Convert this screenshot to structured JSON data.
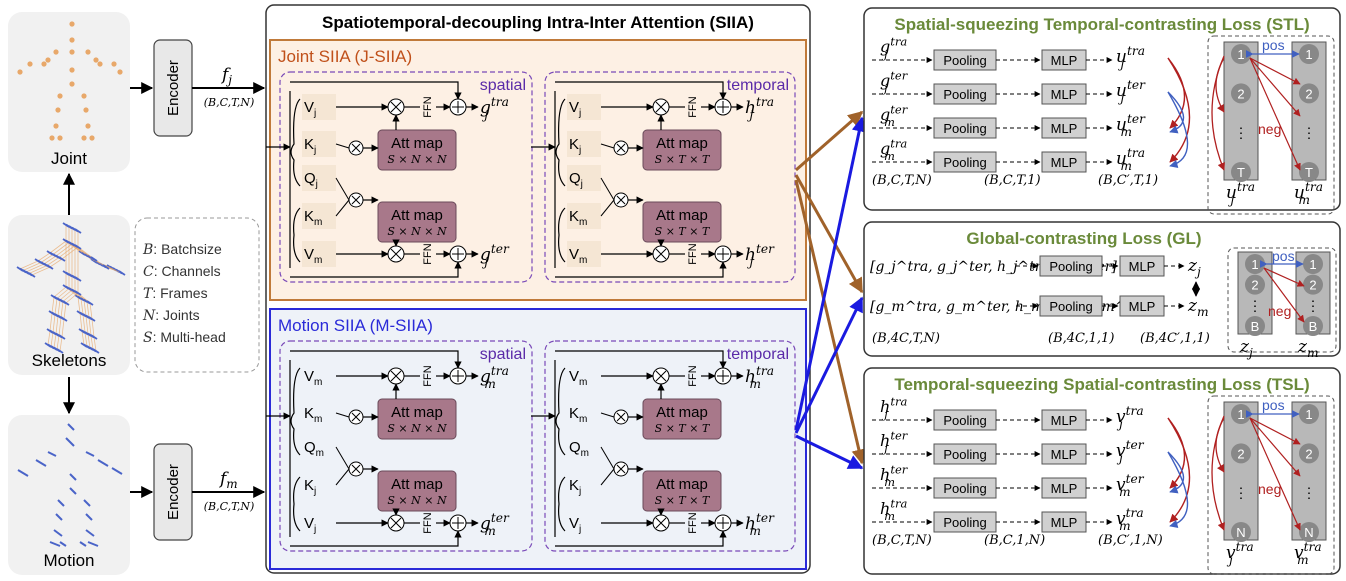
{
  "left": {
    "joint_label": "Joint",
    "skeletons_label": "Skeletons",
    "motion_label": "Motion",
    "encoder_label": "Encoder",
    "fj": "f",
    "fj_sub": "j",
    "fm": "f",
    "fm_sub": "m",
    "shape": "(B,C,T,N)",
    "legend": [
      {
        "sym": "B",
        "desc": ": Batchsize"
      },
      {
        "sym": "C",
        "desc": ": Channels"
      },
      {
        "sym": "T",
        "desc": ": Frames"
      },
      {
        "sym": "N",
        "desc": ": Joints"
      },
      {
        "sym": "S",
        "desc": ": Multi-head"
      }
    ]
  },
  "siia": {
    "title": "Spatiotemporal-decoupling Intra-Inter Attention (SIIA)",
    "joint_title": "Joint SIIA (J-SIIA)",
    "motion_title": "Motion SIIA (M-SIIA)",
    "spatial": "spatial",
    "temporal": "temporal",
    "att_map": "Att map",
    "att_spatial": "S × N × N",
    "att_temporal": "S × T × T",
    "ffn": "FFN",
    "joint_inputs": [
      "V",
      "K",
      "Q",
      "K",
      "V"
    ],
    "joint_subs": [
      "j",
      "j",
      "j",
      "m",
      "m"
    ],
    "motion_inputs": [
      "V",
      "K",
      "Q",
      "K",
      "V"
    ],
    "motion_subs": [
      "m",
      "m",
      "m",
      "j",
      "j"
    ],
    "outputs": {
      "joint_spatial_tra": [
        "g",
        "j",
        "tra"
      ],
      "joint_spatial_ter": [
        "g",
        "j",
        "ter"
      ],
      "joint_temporal_tra": [
        "h",
        "j",
        "tra"
      ],
      "joint_temporal_ter": [
        "h",
        "j",
        "ter"
      ],
      "motion_spatial_tra": [
        "g",
        "m",
        "tra"
      ],
      "motion_spatial_ter": [
        "g",
        "m",
        "ter"
      ],
      "motion_temporal_tra": [
        "h",
        "m",
        "tra"
      ],
      "motion_temporal_ter": [
        "h",
        "m",
        "ter"
      ]
    }
  },
  "stl": {
    "title": "Spatial-squeezing Temporal-contrasting Loss (STL)",
    "pooling": "Pooling",
    "mlp": "MLP",
    "inputs": [
      [
        "g",
        "j",
        "tra"
      ],
      [
        "g",
        "j",
        "ter"
      ],
      [
        "g",
        "m",
        "ter"
      ],
      [
        "g",
        "m",
        "tra"
      ]
    ],
    "outputs": [
      [
        "u",
        "j",
        "tra"
      ],
      [
        "u",
        "j",
        "ter"
      ],
      [
        "u",
        "m",
        "ter"
      ],
      [
        "u",
        "m",
        "tra"
      ]
    ],
    "shapes": [
      "(B,C,T,N)",
      "(B,C,T,1)",
      "(B,C′,T,1)"
    ],
    "pos": "pos",
    "neg": "neg",
    "col_items": [
      "1",
      "2",
      "⋮",
      "T"
    ],
    "col_left": [
      "u",
      "j",
      "tra"
    ],
    "col_right": [
      "u",
      "m",
      "tra"
    ]
  },
  "gl": {
    "title": "Global-contrasting Loss (GL)",
    "pooling": "Pooling",
    "mlp": "MLP",
    "input_j": "[g_j^tra, g_j^ter, h_j^tra, h_j^ter]",
    "input_m": "[g_m^tra, g_m^ter, h_m^tra, h_m^ter]",
    "out_j": [
      "z",
      "j"
    ],
    "out_m": [
      "z",
      "m"
    ],
    "shapes": [
      "(B,4C,T,N)",
      "(B,4C,1,1)",
      "(B,4C′,1,1)"
    ],
    "pos": "pos",
    "neg": "neg",
    "col_items": [
      "1",
      "2",
      "⋮",
      "B"
    ],
    "col_left": [
      "z",
      "j"
    ],
    "col_right": [
      "z",
      "m"
    ]
  },
  "tsl": {
    "title": "Temporal-squeezing Spatial-contrasting Loss (TSL)",
    "pooling": "Pooling",
    "mlp": "MLP",
    "inputs": [
      [
        "h",
        "j",
        "tra"
      ],
      [
        "h",
        "j",
        "ter"
      ],
      [
        "h",
        "m",
        "ter"
      ],
      [
        "h",
        "m",
        "tra"
      ]
    ],
    "outputs": [
      [
        "v",
        "j",
        "tra"
      ],
      [
        "v",
        "j",
        "ter"
      ],
      [
        "v",
        "m",
        "ter"
      ],
      [
        "v",
        "m",
        "tra"
      ]
    ],
    "shapes": [
      "(B,C,T,N)",
      "(B,C,1,N)",
      "(B,C′,1,N)"
    ],
    "pos": "pos",
    "neg": "neg",
    "col_items": [
      "1",
      "2",
      "⋮",
      "N"
    ],
    "col_left": [
      "v",
      "j",
      "tra"
    ],
    "col_right": [
      "v",
      "m",
      "tra"
    ]
  },
  "colors": {
    "joint_dots": "#e8a86a",
    "motion_lines": "#4a64c8",
    "joint_border": "#c07a3a",
    "joint_fill": "#fdf0e4",
    "motion_border": "#2a2ad8",
    "motion_fill": "#eef2f8",
    "att_fill": "#a8788a",
    "title_green": "#6a8a3a",
    "brown_arrow": "#a0622a",
    "blue_arrow": "#1a1ae0",
    "purple_dashed": "#7a4ab8",
    "neg_red": "#b02020",
    "pos_blue": "#4060c0"
  }
}
